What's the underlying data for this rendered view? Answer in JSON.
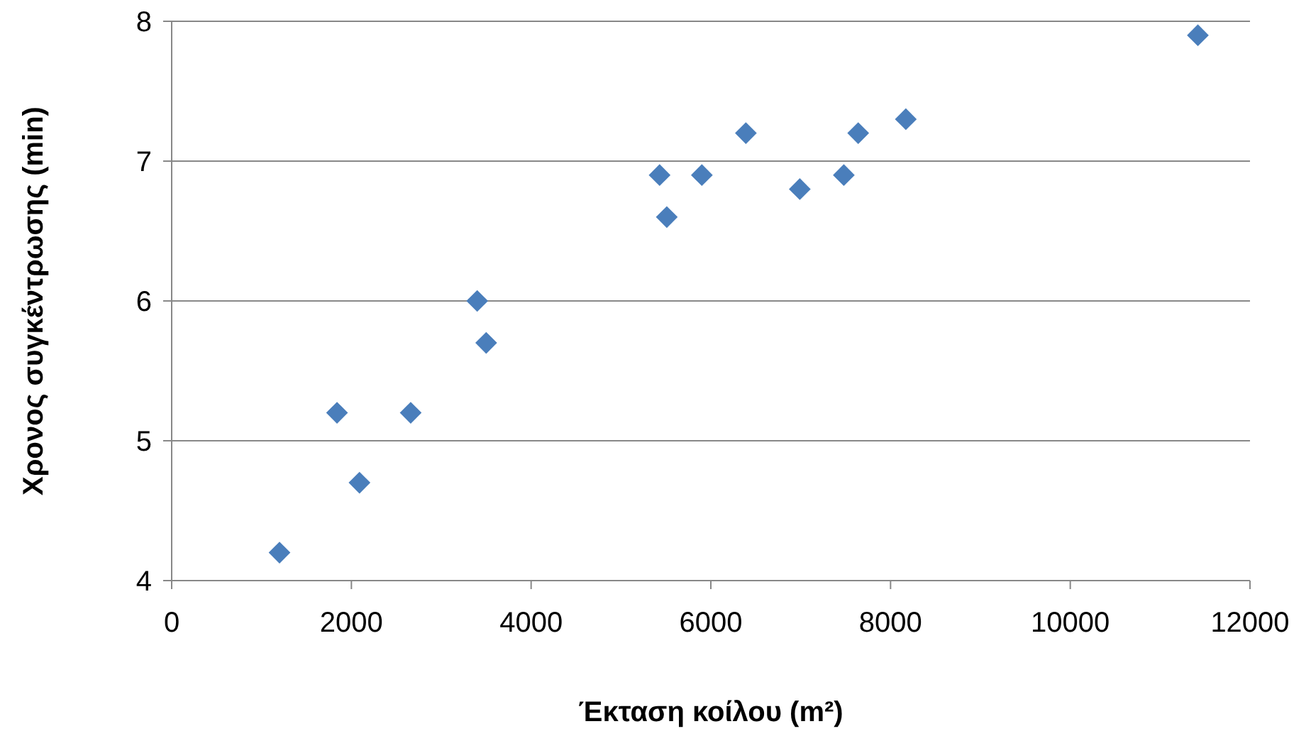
{
  "chart_data": {
    "type": "scatter",
    "xlabel": "Έκταση κοίλου (m²)",
    "ylabel": "Χρονος συγκέντρωσης (min)",
    "x": [
      1200,
      1840,
      2090,
      2660,
      3400,
      3500,
      5430,
      5510,
      5900,
      6390,
      6990,
      7480,
      7640,
      8170,
      11420
    ],
    "series": [
      {
        "color": "#4a7ebb",
        "values": [
          4.2,
          5.2,
          4.7,
          5.2,
          6.0,
          5.7,
          6.9,
          6.6,
          6.9,
          7.2,
          6.8,
          6.9,
          7.2,
          7.3,
          7.9
        ]
      }
    ],
    "xlim": [
      0,
      12000
    ],
    "xticks": [
      0,
      2000,
      4000,
      6000,
      8000,
      10000,
      12000
    ],
    "ylim": [
      4,
      8
    ],
    "yticks": [
      4,
      5,
      6,
      7,
      8
    ],
    "grid": "y",
    "marker": "diamond"
  }
}
